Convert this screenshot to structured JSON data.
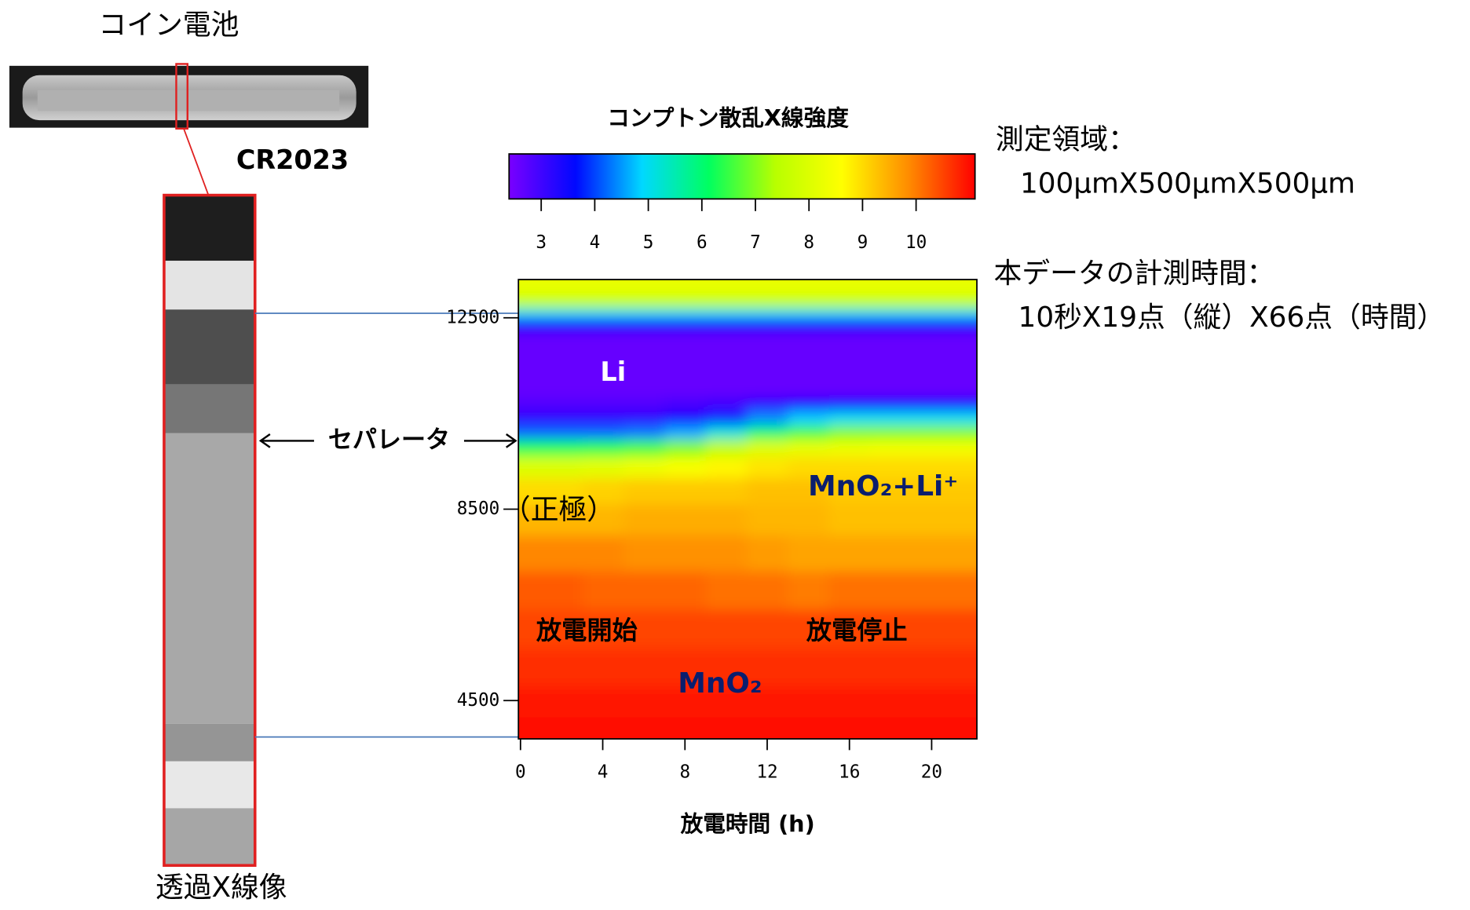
{
  "chart_data": {
    "type": "heatmap",
    "xlabel": "放電時間 (h)",
    "x": [
      0,
      2,
      4,
      6,
      8,
      10,
      12,
      14,
      16,
      18,
      20,
      22
    ],
    "y": [
      13100,
      12800,
      12600,
      12400,
      12000,
      11500,
      11000,
      10700,
      10400,
      10100,
      9800,
      9400,
      8900,
      8300,
      7600,
      6800,
      6000,
      5200,
      4400,
      3900
    ],
    "z": [
      [
        8.2,
        8.2,
        8.2,
        8.2,
        8.2,
        8.2,
        8.2,
        8.2,
        8.2,
        8.2,
        8.2,
        8.2
      ],
      [
        7.5,
        7.5,
        7.5,
        7.5,
        7.5,
        7.5,
        7.5,
        7.5,
        7.5,
        7.5,
        7.5,
        7.5
      ],
      [
        5.0,
        5.0,
        5.0,
        5.0,
        5.0,
        5.0,
        5.0,
        5.0,
        5.0,
        5.0,
        5.0,
        5.0
      ],
      [
        3.5,
        3.5,
        3.5,
        3.5,
        3.5,
        3.5,
        3.5,
        3.5,
        3.5,
        3.5,
        3.5,
        3.5
      ],
      [
        2.6,
        2.6,
        2.6,
        2.6,
        2.6,
        2.6,
        2.6,
        2.6,
        2.6,
        2.6,
        2.6,
        2.6
      ],
      [
        2.6,
        2.6,
        2.6,
        2.6,
        2.6,
        2.6,
        2.6,
        2.6,
        2.6,
        2.6,
        2.6,
        2.6
      ],
      [
        2.6,
        2.6,
        2.6,
        2.6,
        2.6,
        2.6,
        2.6,
        2.6,
        2.6,
        2.6,
        2.6,
        2.6
      ],
      [
        2.8,
        2.8,
        2.8,
        2.8,
        2.9,
        3.0,
        3.2,
        3.4,
        3.5,
        3.5,
        3.5,
        3.5
      ],
      [
        3.2,
        3.2,
        3.2,
        3.2,
        3.4,
        3.8,
        4.4,
        4.8,
        5.0,
        5.0,
        5.0,
        5.0
      ],
      [
        4.2,
        4.2,
        4.2,
        4.3,
        4.6,
        5.2,
        6.0,
        6.6,
        7.0,
        7.0,
        7.0,
        7.0
      ],
      [
        6.3,
        6.3,
        6.4,
        6.6,
        7.0,
        7.5,
        8.0,
        8.2,
        8.3,
        8.4,
        8.4,
        8.4
      ],
      [
        8.0,
        8.0,
        8.1,
        8.3,
        8.5,
        8.7,
        8.9,
        9.0,
        9.0,
        9.0,
        9.0,
        9.0
      ],
      [
        9.0,
        9.0,
        9.1,
        9.2,
        9.2,
        9.2,
        9.3,
        9.3,
        9.2,
        9.2,
        9.2,
        9.2
      ],
      [
        9.4,
        9.4,
        9.4,
        9.5,
        9.5,
        9.5,
        9.4,
        9.4,
        9.3,
        9.3,
        9.3,
        9.3
      ],
      [
        9.9,
        9.9,
        9.9,
        9.8,
        9.8,
        9.8,
        9.7,
        9.6,
        9.6,
        9.6,
        9.6,
        9.6
      ],
      [
        10.3,
        10.3,
        10.2,
        10.2,
        10.2,
        10.1,
        10.1,
        10.0,
        10.1,
        10.1,
        10.1,
        10.1
      ],
      [
        10.5,
        10.5,
        10.5,
        10.5,
        10.5,
        10.5,
        10.5,
        10.5,
        10.5,
        10.5,
        10.5,
        10.5
      ],
      [
        10.7,
        10.7,
        10.7,
        10.7,
        10.7,
        10.7,
        10.7,
        10.7,
        10.7,
        10.7,
        10.7,
        10.7
      ],
      [
        10.9,
        10.9,
        10.9,
        10.9,
        10.9,
        10.9,
        10.9,
        10.9,
        10.9,
        10.9,
        10.9,
        10.9
      ],
      [
        11.0,
        11.0,
        11.0,
        11.0,
        11.0,
        11.0,
        11.0,
        11.0,
        11.0,
        11.0,
        11.0,
        11.0
      ]
    ],
    "xlim": [
      -0.1,
      22.2
    ],
    "xticks": [
      0,
      4,
      8,
      12,
      16,
      20
    ],
    "ylim": [
      3700,
      13300
    ],
    "yticks": [
      12500,
      8500,
      4500
    ],
    "colorbar_title": "コンプトン散乱X線強度",
    "clim": [
      2.4,
      11.1
    ],
    "cticks": [
      3,
      4,
      5,
      6,
      7,
      8,
      9,
      10
    ],
    "colormap": [
      "#7a00ff",
      "#0008ff",
      "#00d8ff",
      "#00ff60",
      "#b8ff00",
      "#ffff00",
      "#ff8c00",
      "#ff0000"
    ],
    "annotations": [
      "Li",
      "MnO₂+Li⁺",
      "MnO₂",
      "放電開始",
      "放電停止",
      "（正極）",
      "セパレータ"
    ]
  },
  "left_panel": {
    "title": "コイン電池",
    "model": "CR2023",
    "caption": "透過X線像"
  },
  "notes": [
    "測定領域：",
    "100μmX500μmX500μm",
    "本データの計測時間：",
    "10秒X19点（縦）X66点（時間）"
  ]
}
